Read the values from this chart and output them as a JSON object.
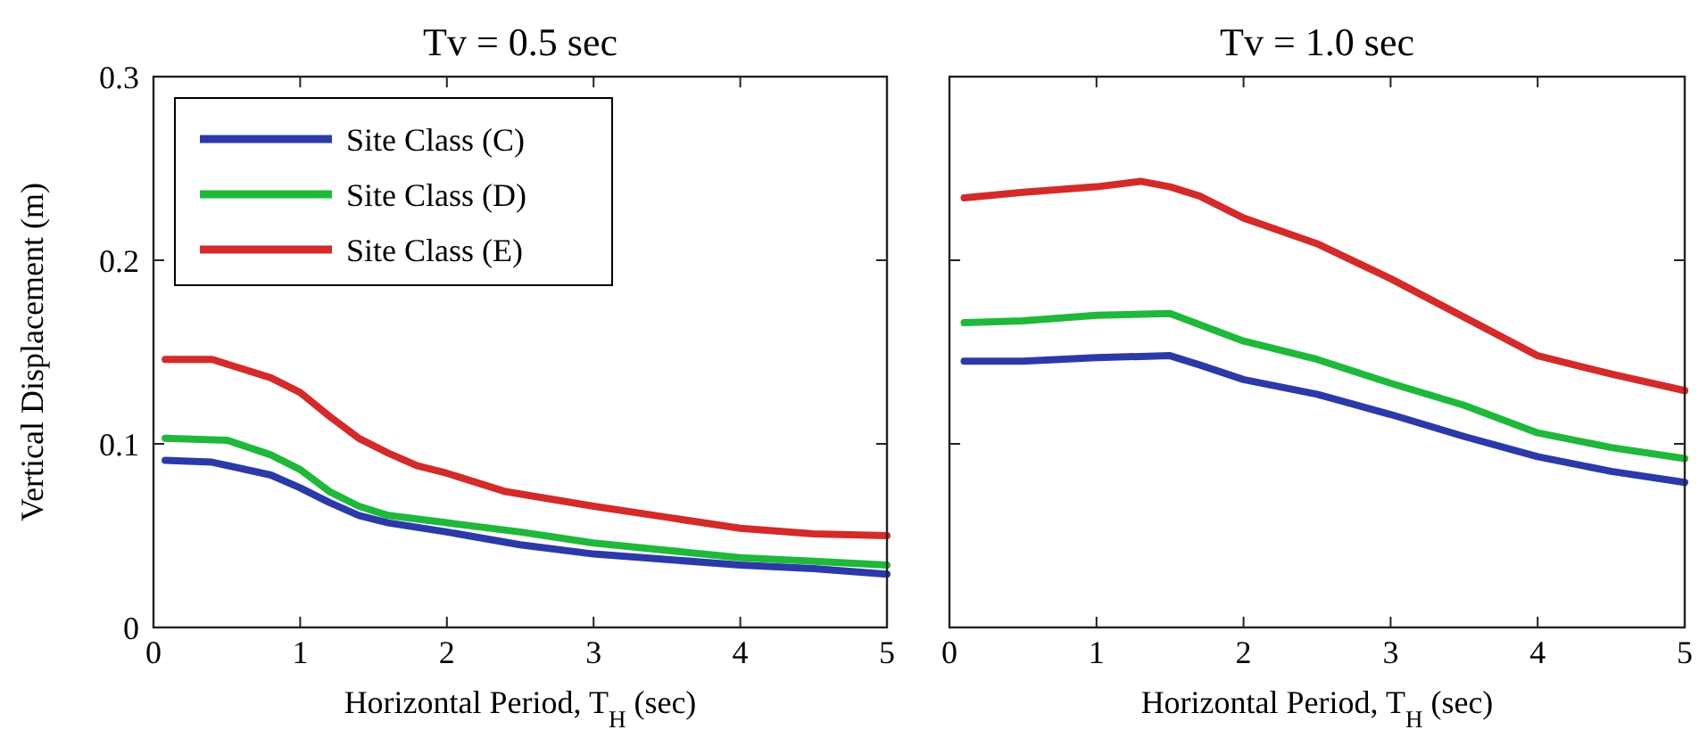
{
  "chart_data": [
    {
      "type": "line",
      "title": "Tv = 0.5 sec",
      "xlabel": "Horizontal Period, T$_{H}$ (sec)",
      "ylabel": "Vertical Displacement (m)",
      "xlim": [
        0,
        5
      ],
      "ylim": [
        0,
        0.3
      ],
      "xticks": [
        0,
        1,
        2,
        3,
        4,
        5
      ],
      "yticks": [
        0,
        0.1,
        0.2,
        0.3
      ],
      "legend": "top left",
      "grid": false,
      "line_style": "solid",
      "marker": "none",
      "series": [
        {
          "name": "Site Class (C)",
          "color": "#2b3aa8",
          "x": [
            0.08,
            0.4,
            0.8,
            1.0,
            1.2,
            1.4,
            1.6,
            2.0,
            2.5,
            3,
            3.5,
            4,
            4.5,
            5
          ],
          "values": [
            0.091,
            0.09,
            0.083,
            0.076,
            0.068,
            0.061,
            0.057,
            0.052,
            0.045,
            0.04,
            0.037,
            0.034,
            0.032,
            0.029
          ]
        },
        {
          "name": "Site Class (D)",
          "color": "#1fb83a",
          "x": [
            0.08,
            0.5,
            0.8,
            1.0,
            1.2,
            1.4,
            1.6,
            2.0,
            2.5,
            3,
            3.5,
            4,
            4.5,
            5
          ],
          "values": [
            0.103,
            0.102,
            0.094,
            0.086,
            0.074,
            0.066,
            0.061,
            0.057,
            0.052,
            0.046,
            0.042,
            0.038,
            0.036,
            0.034
          ]
        },
        {
          "name": "Site Class (E)",
          "color": "#d42a2a",
          "x": [
            0.08,
            0.4,
            0.8,
            1.0,
            1.2,
            1.4,
            1.6,
            1.8,
            2.0,
            2.4,
            3,
            3.5,
            4,
            4.5,
            5
          ],
          "values": [
            0.146,
            0.146,
            0.136,
            0.128,
            0.115,
            0.103,
            0.095,
            0.088,
            0.084,
            0.074,
            0.066,
            0.06,
            0.054,
            0.051,
            0.05
          ]
        }
      ]
    },
    {
      "type": "line",
      "title": "Tv = 1.0 sec",
      "xlabel": "Horizontal Period, T$_{H}$ (sec)",
      "xlim": [
        0,
        5
      ],
      "ylim": [
        0,
        0.3
      ],
      "xticks": [
        0,
        1,
        2,
        3,
        4,
        5
      ],
      "yticks": [
        0,
        0.1,
        0.2,
        0.3
      ],
      "tick_labels": "x",
      "grid": false,
      "line_style": "solid",
      "marker": "none",
      "series": [
        {
          "color": "#2b3aa8",
          "x": [
            0.1,
            0.5,
            1.0,
            1.5,
            1.7,
            2.0,
            2.5,
            3,
            3.5,
            4,
            4.5,
            5
          ],
          "values": [
            0.145,
            0.145,
            0.147,
            0.148,
            0.143,
            0.135,
            0.127,
            0.116,
            0.104,
            0.093,
            0.085,
            0.079
          ]
        },
        {
          "color": "#1fb83a",
          "x": [
            0.1,
            0.5,
            1.0,
            1.5,
            2.0,
            2.5,
            3,
            3.5,
            4,
            4.5,
            5
          ],
          "values": [
            0.166,
            0.167,
            0.17,
            0.171,
            0.156,
            0.146,
            0.133,
            0.121,
            0.106,
            0.098,
            0.092
          ]
        },
        {
          "color": "#d42a2a",
          "x": [
            0.1,
            0.5,
            1.0,
            1.3,
            1.5,
            1.7,
            2.0,
            2.5,
            3,
            3.5,
            4,
            4.5,
            5
          ],
          "values": [
            0.234,
            0.237,
            0.24,
            0.243,
            0.24,
            0.235,
            0.223,
            0.209,
            0.19,
            0.169,
            0.148,
            0.138,
            0.129
          ]
        }
      ]
    }
  ]
}
